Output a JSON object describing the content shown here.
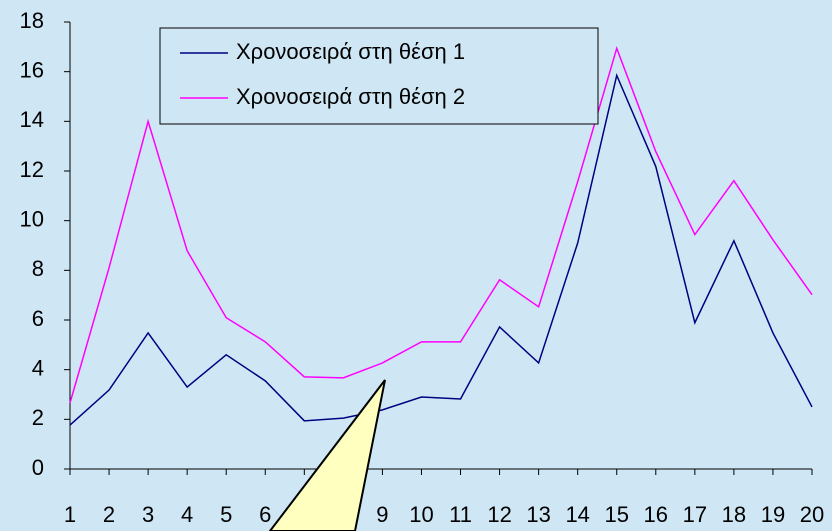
{
  "chart_data": {
    "type": "line",
    "categories": [
      "1",
      "2",
      "3",
      "4",
      "5",
      "6",
      "7",
      "8",
      "9",
      "10",
      "11",
      "12",
      "13",
      "14",
      "15",
      "16",
      "17",
      "18",
      "19",
      "20"
    ],
    "series": [
      {
        "name": "Χρονοσειρά στη θέση 1",
        "color": "#000080",
        "values": [
          1.77,
          3.18,
          5.48,
          3.3,
          4.6,
          3.55,
          1.94,
          2.05,
          2.38,
          2.9,
          2.82,
          5.72,
          4.27,
          9.1,
          15.85,
          12.18,
          5.89,
          9.19,
          5.48,
          2.5
        ]
      },
      {
        "name": "Χρονοσειρά στη θέση 2",
        "color": "#ff00ff",
        "values": [
          2.66,
          8.1,
          14.0,
          8.79,
          6.09,
          5.12,
          3.71,
          3.67,
          4.27,
          5.12,
          5.12,
          7.62,
          6.53,
          11.57,
          16.94,
          12.78,
          9.44,
          11.61,
          9.23,
          7.02
        ]
      }
    ],
    "ylim": [
      0,
      18
    ],
    "yticks": [
      0,
      2,
      4,
      6,
      8,
      10,
      12,
      14,
      16,
      18
    ],
    "grid": false,
    "legend": "top-left"
  }
}
